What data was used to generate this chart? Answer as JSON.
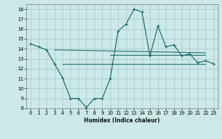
{
  "xlabel": "Humidex (Indice chaleur)",
  "background_color": "#cce8e8",
  "grid_color": "#aacccc",
  "line_color": "#1a6b6b",
  "xlim": [
    -0.5,
    23.5
  ],
  "ylim": [
    8,
    18.5
  ],
  "xticks": [
    0,
    1,
    2,
    3,
    4,
    5,
    6,
    7,
    8,
    9,
    10,
    11,
    12,
    13,
    14,
    15,
    16,
    17,
    18,
    19,
    20,
    21,
    22,
    23
  ],
  "yticks": [
    8,
    9,
    10,
    11,
    12,
    13,
    14,
    15,
    16,
    17,
    18
  ],
  "main_x": [
    0,
    1,
    2,
    3,
    4,
    5,
    6,
    7,
    8,
    9,
    10,
    11,
    12,
    13,
    14,
    15,
    16,
    17,
    18,
    19,
    20,
    21,
    22,
    23
  ],
  "main_y": [
    14.5,
    14.2,
    13.9,
    12.5,
    11.1,
    9.0,
    9.0,
    8.1,
    9.0,
    9.0,
    11.0,
    15.8,
    16.5,
    18.0,
    17.7,
    13.3,
    16.3,
    14.2,
    14.4,
    13.3,
    13.5,
    12.6,
    12.8,
    12.5
  ],
  "line1_x": [
    3,
    22
  ],
  "line1_y": [
    13.9,
    13.6
  ],
  "line2_x": [
    4,
    22
  ],
  "line2_y": [
    12.5,
    12.5
  ],
  "line3_x": [
    10,
    22
  ],
  "line3_y": [
    13.4,
    13.4
  ]
}
